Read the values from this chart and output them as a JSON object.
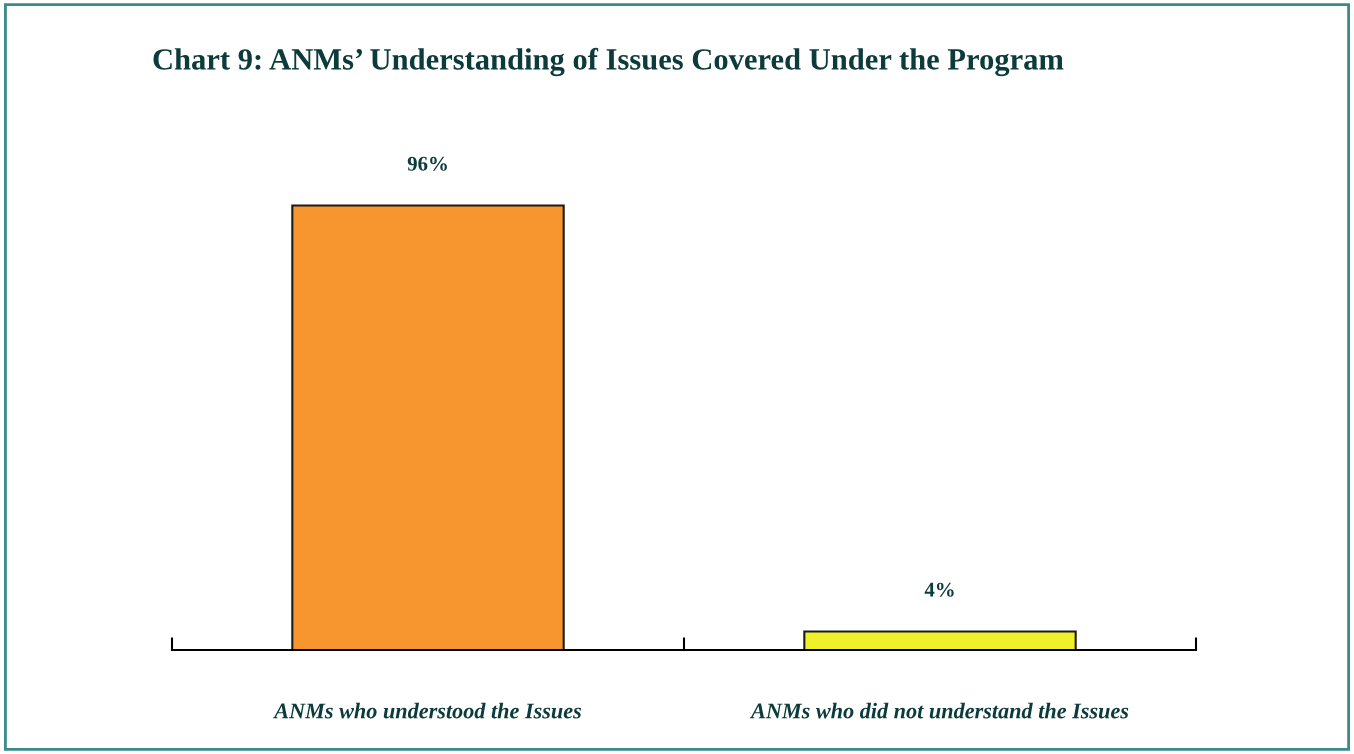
{
  "chart_data": {
    "type": "bar",
    "title": "Chart 9: ANMs’ Understanding of Issues Covered Under the Program",
    "categories": [
      "ANMs who understood the Issues",
      "ANMs who did not understand the Issues"
    ],
    "values": [
      96,
      4
    ],
    "colors": [
      "#f7962f",
      "#f0f02a"
    ],
    "value_labels": [
      "96%",
      "4%"
    ],
    "grid": false,
    "legend": false
  }
}
